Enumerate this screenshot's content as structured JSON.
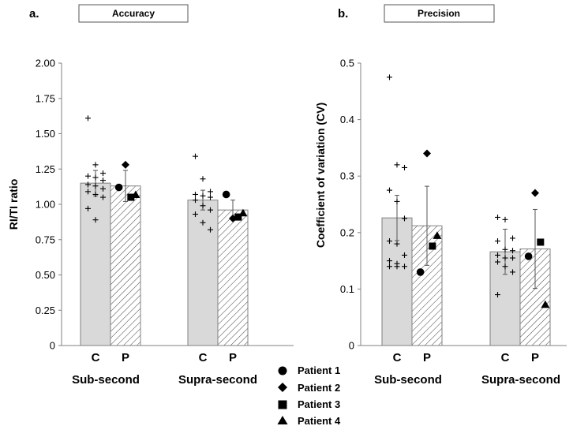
{
  "chart_data": [
    {
      "type": "bar",
      "panel_label": "a.",
      "title": "Accuracy",
      "ylabel": "RI/TI ratio",
      "ylim": [
        0,
        2
      ],
      "yticks": [
        "0",
        "0.25",
        "0.50",
        "0.75",
        "1.00",
        "1.25",
        "1.50",
        "1.75",
        "2.00"
      ],
      "ytick_values": [
        0,
        0.25,
        0.5,
        0.75,
        1.0,
        1.25,
        1.5,
        1.75,
        2.0
      ],
      "groups": [
        {
          "name": "Sub-second",
          "bars": [
            {
              "label": "C",
              "value": 1.15,
              "error": 0.09,
              "fill": "#d9d9d9",
              "controls": [
                1.61,
                1.28,
                1.22,
                1.2,
                1.19,
                1.17,
                1.14,
                1.13,
                1.11,
                1.09,
                1.07,
                1.05,
                0.97,
                0.89
              ]
            },
            {
              "label": "P",
              "value": 1.13,
              "error": 0.11,
              "fill": "hatch",
              "patients": [
                1.12,
                1.28,
                1.05,
                1.07
              ]
            }
          ]
        },
        {
          "name": "Supra-second",
          "bars": [
            {
              "label": "C",
              "value": 1.03,
              "error": 0.07,
              "fill": "#d9d9d9",
              "controls": [
                1.34,
                1.18,
                1.09,
                1.07,
                1.06,
                1.05,
                1.03,
                0.99,
                0.96,
                0.93,
                0.87,
                0.82
              ]
            },
            {
              "label": "P",
              "value": 0.96,
              "error": 0.07,
              "fill": "hatch",
              "patients": [
                1.07,
                0.9,
                0.91,
                0.94
              ]
            }
          ]
        }
      ]
    },
    {
      "type": "bar",
      "panel_label": "b.",
      "title": "Precision",
      "ylabel": "Coefficient of variation (CV)",
      "ylim": [
        0,
        0.5
      ],
      "yticks": [
        "0",
        "0.1",
        "0.2",
        "0.3",
        "0.4",
        "0.5"
      ],
      "ytick_values": [
        0,
        0.1,
        0.2,
        0.3,
        0.4,
        0.5
      ],
      "groups": [
        {
          "name": "Sub-second",
          "bars": [
            {
              "label": "C",
              "value": 0.226,
              "error": 0.04,
              "fill": "#d9d9d9",
              "controls": [
                0.475,
                0.32,
                0.315,
                0.275,
                0.255,
                0.225,
                0.185,
                0.18,
                0.16,
                0.15,
                0.145,
                0.14,
                0.14,
                0.14
              ]
            },
            {
              "label": "P",
              "value": 0.212,
              "error": 0.07,
              "fill": "hatch",
              "patients": [
                0.13,
                0.34,
                0.176,
                0.195
              ]
            }
          ]
        },
        {
          "name": "Supra-second",
          "bars": [
            {
              "label": "C",
              "value": 0.166,
              "error": 0.04,
              "fill": "#d9d9d9",
              "controls": [
                0.227,
                0.223,
                0.19,
                0.185,
                0.17,
                0.168,
                0.16,
                0.155,
                0.155,
                0.148,
                0.14,
                0.13,
                0.09
              ]
            },
            {
              "label": "P",
              "value": 0.171,
              "error": 0.07,
              "fill": "hatch",
              "patients": [
                0.158,
                0.27,
                0.183,
                0.073
              ]
            }
          ]
        }
      ]
    }
  ],
  "legend": {
    "entries": [
      {
        "label": "Patient 1",
        "marker": "circle"
      },
      {
        "label": "Patient 2",
        "marker": "diamond"
      },
      {
        "label": "Patient 3",
        "marker": "square"
      },
      {
        "label": "Patient 4",
        "marker": "triangle"
      }
    ]
  },
  "colors": {
    "bar_c": "#d9d9d9",
    "bar_border": "#808080",
    "hatch_line": "#404040",
    "marker": "#000000"
  }
}
